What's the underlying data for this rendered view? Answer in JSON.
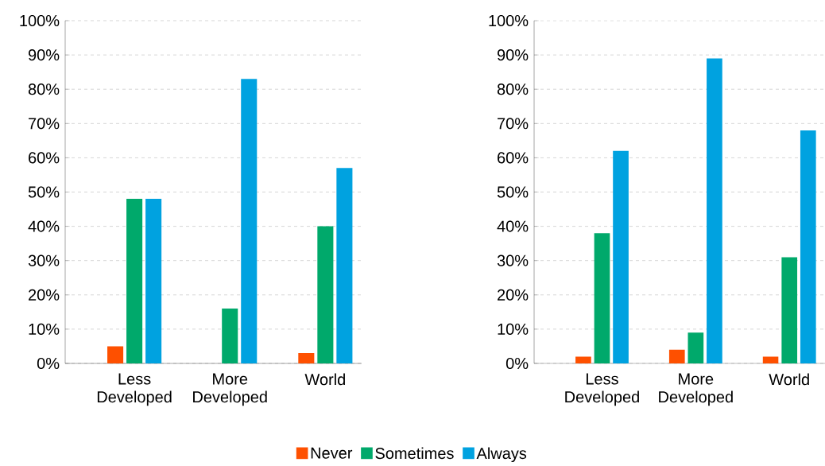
{
  "chart_data": [
    {
      "type": "bar",
      "categories": [
        "Less Developed",
        "More Developed",
        "World"
      ],
      "ylim": [
        0,
        100
      ],
      "yticks": [
        {
          "value": 0,
          "label": "0%"
        },
        {
          "value": 10,
          "label": "10%"
        },
        {
          "value": 20,
          "label": "20%"
        },
        {
          "value": 30,
          "label": "30%"
        },
        {
          "value": 40,
          "label": "40%"
        },
        {
          "value": 50,
          "label": "50%"
        },
        {
          "value": 60,
          "label": "60%"
        },
        {
          "value": 70,
          "label": "70%"
        },
        {
          "value": 80,
          "label": "80%"
        },
        {
          "value": 90,
          "label": "90%"
        },
        {
          "value": 100,
          "label": "100%"
        }
      ],
      "grid": "y",
      "legend": "bottom",
      "series": [
        {
          "name": "Never",
          "color": "#fe5000",
          "values": [
            5,
            0,
            3
          ]
        },
        {
          "name": "Sometimes",
          "color": "#00a96b",
          "values": [
            48,
            16,
            40
          ]
        },
        {
          "name": "Always",
          "color": "#00a2e0",
          "values": [
            48,
            83,
            57
          ]
        }
      ]
    },
    {
      "type": "bar",
      "categories": [
        "Less Developed",
        "More Developed",
        "World"
      ],
      "ylim": [
        0,
        100
      ],
      "yticks": [
        {
          "value": 0,
          "label": "0%"
        },
        {
          "value": 10,
          "label": "10%"
        },
        {
          "value": 20,
          "label": "20%"
        },
        {
          "value": 30,
          "label": "30%"
        },
        {
          "value": 40,
          "label": "40%"
        },
        {
          "value": 50,
          "label": "50%"
        },
        {
          "value": 60,
          "label": "60%"
        },
        {
          "value": 70,
          "label": "70%"
        },
        {
          "value": 80,
          "label": "80%"
        },
        {
          "value": 90,
          "label": "90%"
        },
        {
          "value": 100,
          "label": "100%"
        }
      ],
      "grid": "y",
      "series": [
        {
          "color": "#fe5000",
          "values": [
            2,
            4,
            2
          ]
        },
        {
          "color": "#00a96b",
          "values": [
            38,
            9,
            31
          ]
        },
        {
          "color": "#00a2e0",
          "values": [
            62,
            89,
            68
          ]
        }
      ]
    }
  ]
}
